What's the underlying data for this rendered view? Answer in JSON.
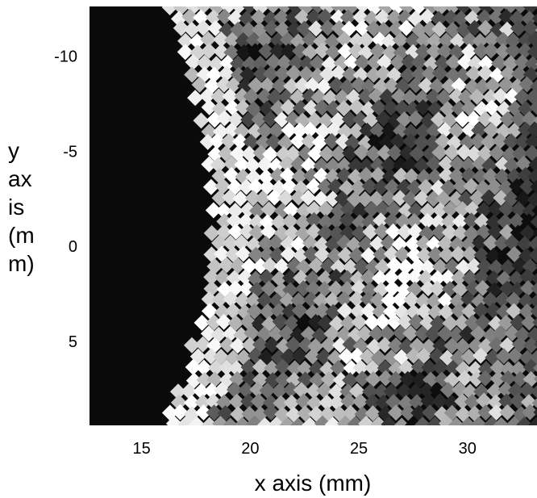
{
  "chart_data": {
    "type": "heatmap",
    "title": "",
    "xlabel": "x axis (mm)",
    "ylabel": "y axis (mm)",
    "ylabel_lines": [
      "y",
      "ax",
      "is",
      "(m",
      "m)"
    ],
    "xlim": [
      12.6,
      33.2
    ],
    "ylim": [
      -12.6,
      9.4
    ],
    "y_inverted": true,
    "xticks": [
      15,
      20,
      25,
      30
    ],
    "yticks": [
      -10,
      -5,
      0,
      5
    ],
    "colormap": "grayscale",
    "background_color": "#0a0a0a",
    "grid": false
  }
}
